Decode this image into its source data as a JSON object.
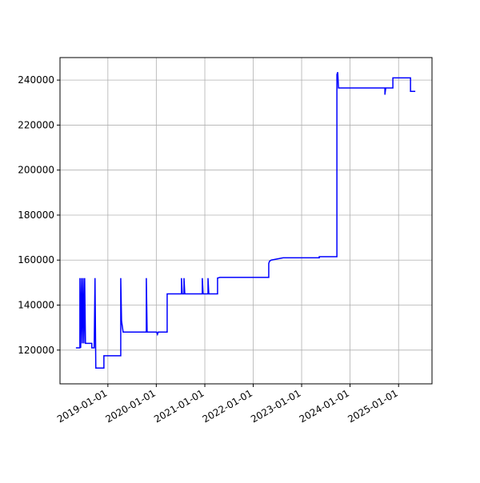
{
  "chart_data": {
    "type": "line",
    "color": "#0000ff",
    "grid": true,
    "x": [
      "2018-05-05",
      "2018-06-04",
      "2018-06-04",
      "2018-06-10",
      "2018-06-16",
      "2018-06-22",
      "2018-06-28",
      "2018-07-04",
      "2018-07-10",
      "2018-07-16",
      "2018-09-02",
      "2018-09-02",
      "2018-09-20",
      "2018-09-26",
      "2018-10-02",
      "2018-12-02",
      "2018-12-02",
      "2019-04-08",
      "2019-04-08",
      "2019-04-14",
      "2019-04-26",
      "2019-10-18",
      "2019-10-18",
      "2019-10-24",
      "2020-01-04",
      "2020-01-10",
      "2020-01-16",
      "2020-03-23",
      "2020-03-23",
      "2020-07-09",
      "2020-07-09",
      "2020-07-15",
      "2020-07-28",
      "2020-07-28",
      "2020-08-03",
      "2020-12-13",
      "2020-12-13",
      "2020-12-19",
      "2021-01-25",
      "2021-01-25",
      "2021-01-31",
      "2021-04-07",
      "2021-04-07",
      "2021-04-25",
      "2022-04-28",
      "2022-04-28",
      "2022-05-04",
      "2022-05-17",
      "2022-08-15",
      "2023-05-14",
      "2023-05-14",
      "2023-09-24",
      "2023-09-24",
      "2023-09-30",
      "2023-10-06",
      "2024-09-20",
      "2024-09-20",
      "2024-09-26",
      "2024-11-19",
      "2024-11-19",
      "2025-04-01",
      "2025-04-01",
      "2025-05-07"
    ],
    "values": [
      121000,
      121000,
      152000,
      121000,
      152000,
      123000,
      152000,
      123000,
      152000,
      123000,
      123000,
      121000,
      121000,
      152000,
      112000,
      112000,
      117500,
      117500,
      152000,
      133000,
      128000,
      128000,
      152000,
      128000,
      128000,
      127000,
      128000,
      128000,
      145000,
      145000,
      152000,
      145000,
      145000,
      152000,
      145000,
      145000,
      152000,
      145000,
      145000,
      152000,
      145000,
      145000,
      152000,
      152300,
      152300,
      158500,
      159500,
      160000,
      161000,
      161000,
      161500,
      161500,
      242500,
      243500,
      236500,
      236500,
      233500,
      236500,
      236500,
      241000,
      241000,
      235000,
      235000
    ],
    "xlim": [
      "2018-01-05",
      "2025-09-10"
    ],
    "xticks": [
      "2019-01-01",
      "2020-01-01",
      "2021-01-01",
      "2022-01-01",
      "2023-01-01",
      "2024-01-01",
      "2025-01-01"
    ],
    "ylim": [
      105000,
      250000
    ],
    "yticks": [
      120000,
      140000,
      160000,
      180000,
      200000,
      220000,
      240000
    ]
  }
}
